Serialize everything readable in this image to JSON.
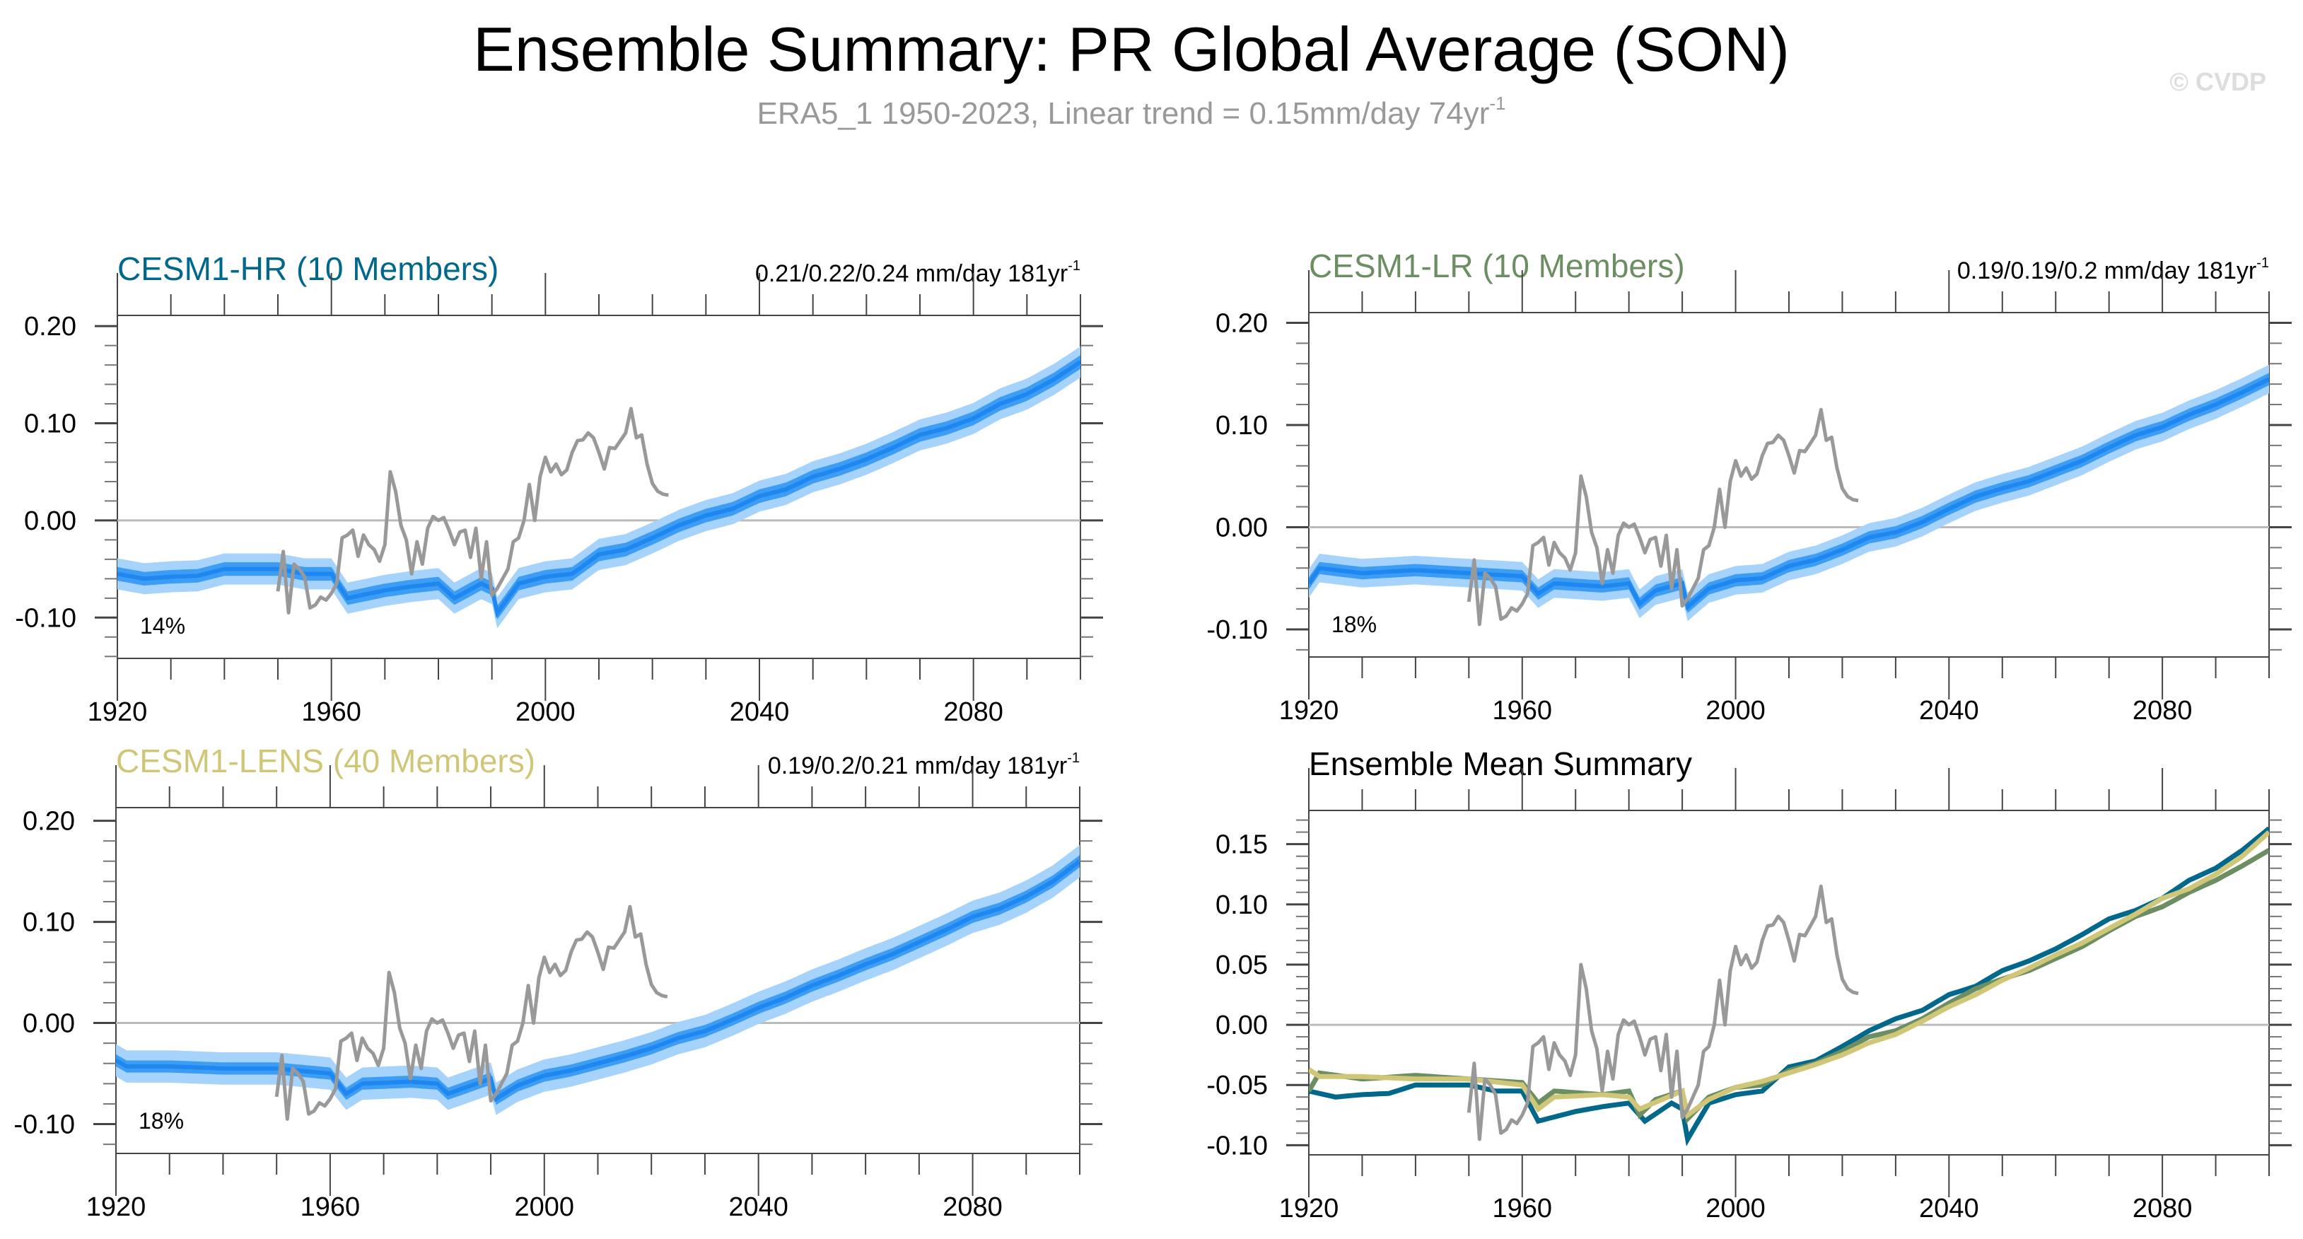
{
  "header": {
    "title": "Ensemble Summary: PR Global Average (SON)",
    "subtitle": "ERA5_1 1950-2023, Linear trend = 0.15mm/day 74yr",
    "subtitle_exp": "-1",
    "watermark": "© CVDP"
  },
  "colors": {
    "hr": "#00688b",
    "lr": "#6b8e62",
    "lens": "#cfc777",
    "band_outer": "#a6d3fb",
    "band_inner": "#3d9df5",
    "ens_mean": "#1e88f0",
    "observed": "#999999"
  },
  "chart_data": [
    {
      "type": "line",
      "title": "CESM1-HR (10 Members)",
      "trend_text": "0.21/0.22/0.24 mm/day 181yr",
      "trend_exp": "-1",
      "percent": "14%",
      "xlim": [
        1920,
        2100
      ],
      "ylim": [
        -0.142,
        0.211
      ],
      "xticks": [
        "1920",
        "1960",
        "2000",
        "2040",
        "2080"
      ],
      "yticks": [
        "0.20",
        "0.10",
        "0.00",
        "-0.10"
      ],
      "ens_key": "hr",
      "spread_inner": 0.007,
      "spread_outer": 0.016
    },
    {
      "type": "line",
      "title": "CESM1-LR (10 Members)",
      "trend_text": "0.19/0.19/0.2 mm/day 181yr",
      "trend_exp": "-1",
      "percent": "18%",
      "xlim": [
        1920,
        2100
      ],
      "ylim": [
        -0.127,
        0.21
      ],
      "xticks": [
        "1920",
        "1960",
        "2000",
        "2040",
        "2080"
      ],
      "yticks": [
        "0.20",
        "0.10",
        "0.00",
        "-0.10"
      ],
      "ens_key": "lr",
      "spread_inner": 0.006,
      "spread_outer": 0.014
    },
    {
      "type": "line",
      "title": "CESM1-LENS (40 Members)",
      "trend_text": "0.19/0.2/0.21 mm/day 181yr",
      "trend_exp": "-1",
      "percent": "18%",
      "xlim": [
        1920,
        2100
      ],
      "ylim": [
        -0.129,
        0.213
      ],
      "xticks": [
        "1920",
        "1960",
        "2000",
        "2040",
        "2080"
      ],
      "yticks": [
        "0.20",
        "0.10",
        "0.00",
        "-0.10"
      ],
      "ens_key": "lens",
      "spread_inner": 0.006,
      "spread_outer": 0.016
    },
    {
      "type": "line",
      "title": "Ensemble Mean Summary",
      "xlim": [
        1920,
        2100
      ],
      "ylim": [
        -0.108,
        0.178
      ],
      "xticks": [
        "1920",
        "1960",
        "2000",
        "2040",
        "2080"
      ],
      "yticks": [
        "0.15",
        "0.10",
        "0.05",
        "0.00",
        "-0.05",
        "-0.10"
      ],
      "series_keys": [
        "hr",
        "lr",
        "lens"
      ]
    }
  ],
  "series": {
    "observed": {
      "name": "ERA5_1",
      "start": 1950,
      "values": [
        -0.073,
        -0.032,
        -0.095,
        -0.045,
        -0.05,
        -0.058,
        -0.09,
        -0.087,
        -0.079,
        -0.082,
        -0.075,
        -0.065,
        -0.018,
        -0.015,
        -0.01,
        -0.037,
        -0.015,
        -0.025,
        -0.03,
        -0.042,
        -0.025,
        0.05,
        0.03,
        -0.005,
        -0.02,
        -0.055,
        -0.022,
        -0.045,
        -0.008,
        0.004,
        0.0,
        0.003,
        -0.01,
        -0.025,
        -0.012,
        -0.01,
        -0.038,
        -0.008,
        -0.06,
        -0.022,
        -0.077,
        -0.07,
        -0.06,
        -0.05,
        -0.022,
        -0.018,
        0.0,
        0.037,
        0.0,
        0.045,
        0.065,
        0.05,
        0.058,
        0.047,
        0.052,
        0.07,
        0.082,
        0.083,
        0.09,
        0.085,
        0.07,
        0.053,
        0.075,
        0.074,
        0.082,
        0.09,
        0.115,
        0.085,
        0.088,
        0.058,
        0.038,
        0.03,
        0.027,
        0.026
      ]
    },
    "hr": {
      "name": "CESM1-HR",
      "points": [
        [
          1920,
          -0.055
        ],
        [
          1925,
          -0.06
        ],
        [
          1930,
          -0.058
        ],
        [
          1935,
          -0.057
        ],
        [
          1940,
          -0.05
        ],
        [
          1945,
          -0.05
        ],
        [
          1950,
          -0.05
        ],
        [
          1955,
          -0.055
        ],
        [
          1960,
          -0.055
        ],
        [
          1963,
          -0.08
        ],
        [
          1970,
          -0.072
        ],
        [
          1975,
          -0.068
        ],
        [
          1980,
          -0.065
        ],
        [
          1983,
          -0.08
        ],
        [
          1988,
          -0.065
        ],
        [
          1990,
          -0.07
        ],
        [
          1991,
          -0.095
        ],
        [
          1995,
          -0.065
        ],
        [
          2000,
          -0.058
        ],
        [
          2005,
          -0.055
        ],
        [
          2010,
          -0.035
        ],
        [
          2015,
          -0.03
        ],
        [
          2020,
          -0.018
        ],
        [
          2025,
          -0.005
        ],
        [
          2030,
          0.005
        ],
        [
          2035,
          0.012
        ],
        [
          2040,
          0.025
        ],
        [
          2045,
          0.032
        ],
        [
          2050,
          0.045
        ],
        [
          2055,
          0.053
        ],
        [
          2060,
          0.063
        ],
        [
          2065,
          0.075
        ],
        [
          2070,
          0.088
        ],
        [
          2075,
          0.095
        ],
        [
          2080,
          0.105
        ],
        [
          2085,
          0.12
        ],
        [
          2090,
          0.13
        ],
        [
          2095,
          0.145
        ],
        [
          2100,
          0.163
        ]
      ]
    },
    "lr": {
      "name": "CESM1-LR",
      "points": [
        [
          1920,
          -0.055
        ],
        [
          1922,
          -0.04
        ],
        [
          1930,
          -0.045
        ],
        [
          1940,
          -0.042
        ],
        [
          1950,
          -0.045
        ],
        [
          1960,
          -0.048
        ],
        [
          1963,
          -0.065
        ],
        [
          1966,
          -0.055
        ],
        [
          1975,
          -0.058
        ],
        [
          1980,
          -0.055
        ],
        [
          1982,
          -0.075
        ],
        [
          1985,
          -0.062
        ],
        [
          1990,
          -0.055
        ],
        [
          1991,
          -0.078
        ],
        [
          1995,
          -0.06
        ],
        [
          2000,
          -0.052
        ],
        [
          2005,
          -0.05
        ],
        [
          2010,
          -0.038
        ],
        [
          2015,
          -0.032
        ],
        [
          2020,
          -0.022
        ],
        [
          2025,
          -0.01
        ],
        [
          2030,
          -0.005
        ],
        [
          2035,
          0.005
        ],
        [
          2040,
          0.018
        ],
        [
          2045,
          0.03
        ],
        [
          2050,
          0.038
        ],
        [
          2055,
          0.045
        ],
        [
          2060,
          0.055
        ],
        [
          2065,
          0.065
        ],
        [
          2070,
          0.078
        ],
        [
          2075,
          0.09
        ],
        [
          2080,
          0.098
        ],
        [
          2085,
          0.11
        ],
        [
          2090,
          0.12
        ],
        [
          2095,
          0.132
        ],
        [
          2100,
          0.145
        ]
      ]
    },
    "lens": {
      "name": "CESM1-LENS",
      "points": [
        [
          1920,
          -0.037
        ],
        [
          1922,
          -0.043
        ],
        [
          1930,
          -0.043
        ],
        [
          1940,
          -0.045
        ],
        [
          1950,
          -0.045
        ],
        [
          1960,
          -0.05
        ],
        [
          1963,
          -0.07
        ],
        [
          1966,
          -0.06
        ],
        [
          1975,
          -0.058
        ],
        [
          1980,
          -0.06
        ],
        [
          1982,
          -0.07
        ],
        [
          1990,
          -0.055
        ],
        [
          1991,
          -0.075
        ],
        [
          1995,
          -0.062
        ],
        [
          2000,
          -0.052
        ],
        [
          2005,
          -0.047
        ],
        [
          2010,
          -0.04
        ],
        [
          2015,
          -0.033
        ],
        [
          2020,
          -0.025
        ],
        [
          2025,
          -0.015
        ],
        [
          2030,
          -0.008
        ],
        [
          2035,
          0.003
        ],
        [
          2040,
          0.015
        ],
        [
          2045,
          0.025
        ],
        [
          2050,
          0.037
        ],
        [
          2055,
          0.047
        ],
        [
          2060,
          0.058
        ],
        [
          2065,
          0.068
        ],
        [
          2070,
          0.08
        ],
        [
          2075,
          0.092
        ],
        [
          2080,
          0.105
        ],
        [
          2085,
          0.113
        ],
        [
          2090,
          0.125
        ],
        [
          2095,
          0.14
        ],
        [
          2100,
          0.16
        ]
      ]
    }
  }
}
